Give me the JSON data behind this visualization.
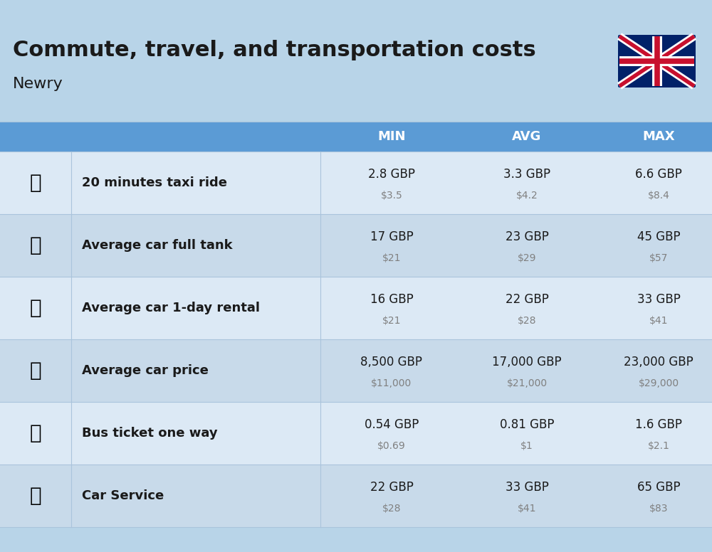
{
  "title": "Commute, travel, and transportation costs",
  "subtitle": "Newry",
  "bg_color": "#b8d4e8",
  "header_bg": "#5b9bd5",
  "row_bg_light": "#dce9f5",
  "row_bg_dark": "#c8daea",
  "header_text_color": "#ffffff",
  "label_text_color": "#1a1a1a",
  "value_text_color": "#1a1a1a",
  "sub_value_color": "#808080",
  "columns": [
    "MIN",
    "AVG",
    "MAX"
  ],
  "rows": [
    {
      "label": "20 minutes taxi ride",
      "emoji": "🚕",
      "min_gbp": "2.8 GBP",
      "min_usd": "$3.5",
      "avg_gbp": "3.3 GBP",
      "avg_usd": "$4.2",
      "max_gbp": "6.6 GBP",
      "max_usd": "$8.4"
    },
    {
      "label": "Average car full tank",
      "emoji": "⛽",
      "min_gbp": "17 GBP",
      "min_usd": "$21",
      "avg_gbp": "23 GBP",
      "avg_usd": "$29",
      "max_gbp": "45 GBP",
      "max_usd": "$57"
    },
    {
      "label": "Average car 1-day rental",
      "emoji": "🚙",
      "min_gbp": "16 GBP",
      "min_usd": "$21",
      "avg_gbp": "22 GBP",
      "avg_usd": "$28",
      "max_gbp": "33 GBP",
      "max_usd": "$41"
    },
    {
      "label": "Average car price",
      "emoji": "🚗",
      "min_gbp": "8,500 GBP",
      "min_usd": "$11,000",
      "avg_gbp": "17,000 GBP",
      "avg_usd": "$21,000",
      "max_gbp": "23,000 GBP",
      "max_usd": "$29,000"
    },
    {
      "label": "Bus ticket one way",
      "emoji": "🚌",
      "min_gbp": "0.54 GBP",
      "min_usd": "$0.69",
      "avg_gbp": "0.81 GBP",
      "avg_usd": "$1",
      "max_gbp": "1.6 GBP",
      "max_usd": "$2.1"
    },
    {
      "label": "Car Service",
      "emoji": "🚗",
      "min_gbp": "22 GBP",
      "min_usd": "$28",
      "avg_gbp": "33 GBP",
      "avg_usd": "$41",
      "max_gbp": "65 GBP",
      "max_usd": "$83"
    }
  ],
  "flag_emoji": "🇬🇧"
}
